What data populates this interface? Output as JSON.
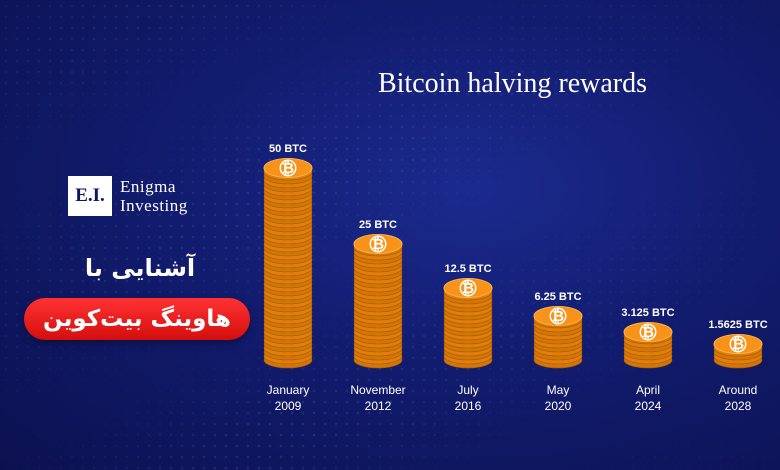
{
  "brand": {
    "logo_mark": "E.I.",
    "name_line1": "Enigma",
    "name_line2": "Investing"
  },
  "promo": {
    "title_fa": "آشنایی با",
    "pill_fa": "هاوینگ بیت‌کوین"
  },
  "colors": {
    "background": "#121c6e",
    "coin_orange": "#f7931a",
    "coin_edge": "#c76a00",
    "pill_red": "#e81c1c"
  },
  "chart_data": {
    "type": "bar",
    "title": "Bitcoin halving rewards",
    "unit": "BTC",
    "categories": [
      [
        "January",
        "2009"
      ],
      [
        "November",
        "2012"
      ],
      [
        "July",
        "2016"
      ],
      [
        "May",
        "2020"
      ],
      [
        "April",
        "2024"
      ],
      [
        "Around",
        "2028"
      ]
    ],
    "values": [
      50,
      25,
      12.5,
      6.25,
      3.125,
      1.5625
    ],
    "value_labels": [
      "50 BTC",
      "25 BTC",
      "12.5 BTC",
      "6.25 BTC",
      "3.125 BTC",
      "1.5625 BTC"
    ],
    "bar_style": "stacked coins",
    "icon": "bitcoin-coin-icon",
    "grid": false,
    "legend": "none"
  }
}
